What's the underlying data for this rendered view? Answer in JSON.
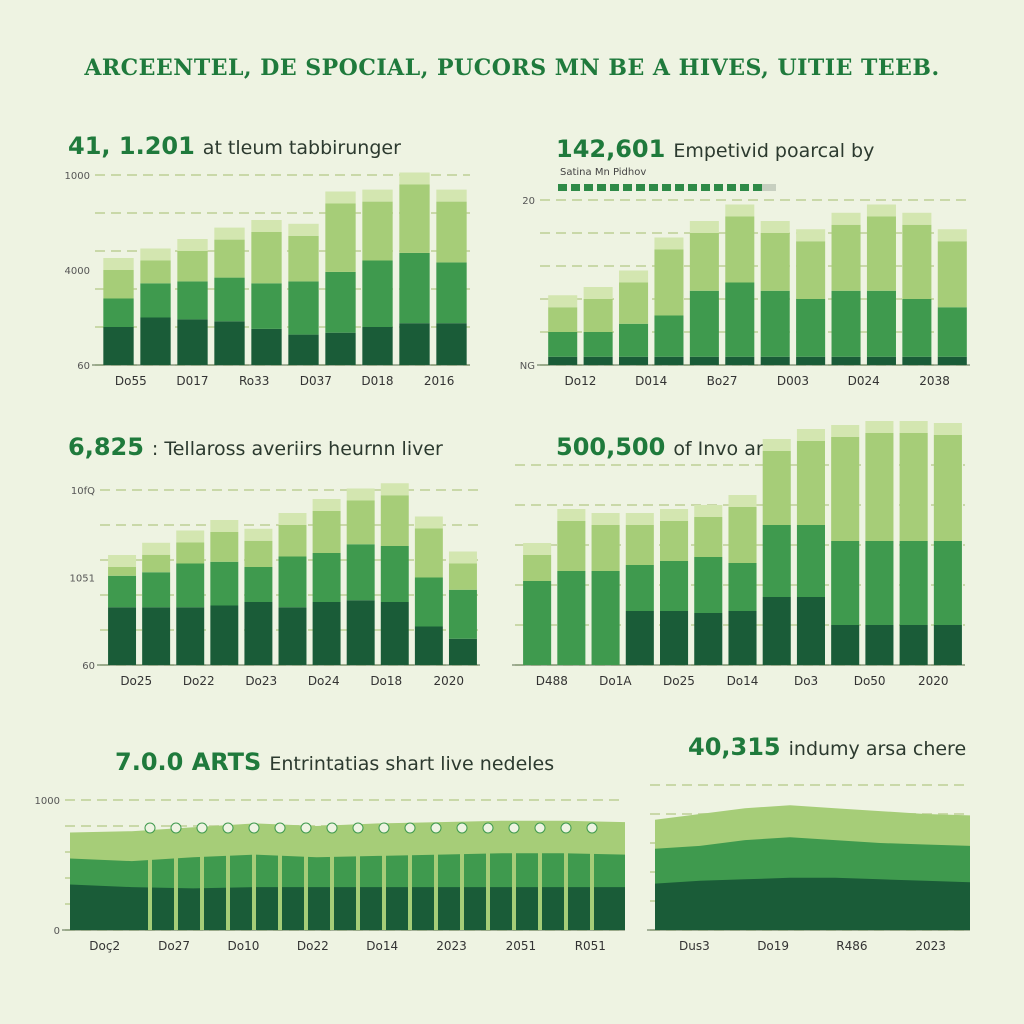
{
  "page_title": "ARCEENTEL, DE SPOCIAL, PUCORS MN BE A HIVES, UITIE TEEB.",
  "colors": {
    "dark": "#1a5c38",
    "mid": "#3f9a4e",
    "light": "#a6cd78",
    "pale": "#d3e6b0",
    "text": "#1f7a3c"
  },
  "chart_data": [
    {
      "id": "panel1",
      "type": "bar",
      "title_number": "41, 1.201",
      "title_text": "at tleum tabbirunger",
      "y_ticks": [
        "1000",
        "4000",
        "60"
      ],
      "ylim": [
        0,
        1000
      ],
      "x_tick_labels": [
        "Do55",
        "D017",
        "Ro33",
        "D037",
        "D018",
        "2016"
      ],
      "categories": [
        "1",
        "2",
        "3",
        "4",
        "5",
        "6",
        "7",
        "8",
        "9",
        "10"
      ],
      "series": [
        {
          "name": "dark",
          "values": [
            200,
            250,
            240,
            230,
            190,
            160,
            170,
            200,
            220,
            220
          ]
        },
        {
          "name": "mid",
          "values": [
            150,
            180,
            200,
            230,
            240,
            280,
            320,
            350,
            370,
            320
          ]
        },
        {
          "name": "light",
          "values": [
            150,
            120,
            160,
            200,
            270,
            240,
            360,
            310,
            360,
            320
          ]
        }
      ]
    },
    {
      "id": "panel2",
      "type": "bar",
      "title_number": "142,601",
      "title_text": "Empetivid poarcal by",
      "legend_label": "Satina Mn Pidhov",
      "y_ticks": [
        "20",
        "NG"
      ],
      "ylim": [
        0,
        20
      ],
      "x_tick_labels": [
        "Do12",
        "D014",
        "Bo27",
        "D003",
        "D024",
        "2038"
      ],
      "categories": [
        "1",
        "2",
        "3",
        "4",
        "5",
        "6",
        "7",
        "8",
        "9",
        "10",
        "11",
        "12"
      ],
      "series": [
        {
          "name": "dark",
          "values": [
            1,
            1,
            1,
            1,
            1,
            1,
            1,
            1,
            1,
            1,
            1,
            1
          ]
        },
        {
          "name": "mid",
          "values": [
            3,
            3,
            4,
            5,
            8,
            9,
            8,
            7,
            8,
            8,
            7,
            6
          ]
        },
        {
          "name": "light",
          "values": [
            3,
            4,
            5,
            8,
            7,
            8,
            7,
            7,
            8,
            9,
            9,
            8
          ]
        }
      ]
    },
    {
      "id": "panel3",
      "type": "bar",
      "title_number": "6,825",
      "title_text": ": Tellaross averiirs heurnn liver",
      "y_ticks": [
        "10fQ",
        "1051",
        "60"
      ],
      "ylim": [
        0,
        1000
      ],
      "x_tick_labels": [
        "Do25",
        "Do22",
        "Do23",
        "Do24",
        "Do18",
        "2020"
      ],
      "categories": [
        "1",
        "2",
        "3",
        "4",
        "5",
        "6",
        "7",
        "8",
        "9",
        "10",
        "11"
      ],
      "series": [
        {
          "name": "dark",
          "values": [
            330,
            330,
            330,
            340,
            360,
            330,
            360,
            370,
            360,
            220,
            150
          ]
        },
        {
          "name": "mid",
          "values": [
            180,
            200,
            250,
            250,
            200,
            290,
            280,
            320,
            320,
            280,
            280
          ]
        },
        {
          "name": "light",
          "values": [
            50,
            100,
            120,
            170,
            150,
            180,
            240,
            250,
            290,
            280,
            150
          ]
        }
      ]
    },
    {
      "id": "panel4",
      "type": "bar",
      "title_number": "500,500",
      "title_text": "of Invo arer",
      "y_ticks": [],
      "ylim": [
        0,
        1000
      ],
      "x_tick_labels": [
        "D488",
        "Do1A",
        "Do25",
        "Do14",
        "Do3",
        "Do50",
        "2020"
      ],
      "categories": [
        "1",
        "2",
        "3",
        "4",
        "5",
        "6",
        "7",
        "8",
        "9",
        "10",
        "11",
        "12",
        "13"
      ],
      "series": [
        {
          "name": "dark",
          "values": [
            0,
            0,
            0,
            270,
            270,
            260,
            270,
            340,
            340,
            200,
            200,
            200,
            200
          ]
        },
        {
          "name": "mid",
          "values": [
            420,
            470,
            470,
            230,
            250,
            280,
            240,
            360,
            360,
            420,
            420,
            420,
            420
          ]
        },
        {
          "name": "light",
          "values": [
            130,
            250,
            230,
            200,
            200,
            200,
            280,
            370,
            420,
            520,
            540,
            540,
            530
          ]
        }
      ]
    },
    {
      "id": "panel5",
      "type": "area",
      "title_number": "7.0.0 ARTS",
      "title_text": "Entrintatias shart live nedeles",
      "y_ticks": [
        "1000",
        "0"
      ],
      "ylim": [
        0,
        1000
      ],
      "x_tick_labels": [
        "Doç2",
        "Do27",
        "Do10",
        "Do22",
        "Do14",
        "2023",
        "2051",
        "R051"
      ],
      "categories": [
        "1",
        "2",
        "3",
        "4",
        "5",
        "6",
        "7",
        "8",
        "9",
        "10"
      ],
      "series": [
        {
          "name": "dark",
          "values": [
            350,
            330,
            320,
            330,
            330,
            330,
            330,
            330,
            330,
            330
          ]
        },
        {
          "name": "mid",
          "values": [
            550,
            530,
            560,
            580,
            560,
            570,
            580,
            590,
            590,
            580
          ]
        },
        {
          "name": "light",
          "values": [
            750,
            760,
            790,
            820,
            800,
            820,
            830,
            840,
            840,
            830
          ]
        }
      ]
    },
    {
      "id": "panel6",
      "type": "area",
      "title_number": "40,315",
      "title_text": "indumy arsa chere",
      "y_ticks": [],
      "ylim": [
        0,
        1000
      ],
      "x_tick_labels": [
        "Dus3",
        "Do19",
        "R486",
        "2023"
      ],
      "categories": [
        "1",
        "2",
        "3",
        "4",
        "5",
        "6",
        "7",
        "8"
      ],
      "series": [
        {
          "name": "dark",
          "values": [
            320,
            340,
            350,
            360,
            360,
            350,
            340,
            330
          ]
        },
        {
          "name": "mid",
          "values": [
            560,
            580,
            620,
            640,
            620,
            600,
            590,
            580
          ]
        },
        {
          "name": "light",
          "values": [
            760,
            800,
            840,
            860,
            840,
            820,
            800,
            790
          ]
        }
      ]
    }
  ]
}
